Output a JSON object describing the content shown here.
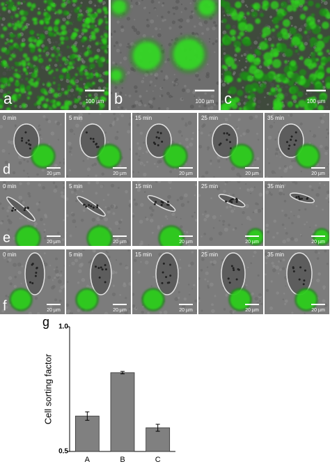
{
  "image_panels": [
    {
      "label": "a",
      "scale_bar": "100 µm"
    },
    {
      "label": "b",
      "scale_bar": "100 µm"
    },
    {
      "label": "c",
      "scale_bar": "100 µm"
    }
  ],
  "time_series_rows": [
    {
      "label": "d",
      "times": [
        "0 min",
        "5 min",
        "15 min",
        "25 min",
        "35 min"
      ],
      "scale_bar": "20 µm"
    },
    {
      "label": "e",
      "times": [
        "0 min",
        "5 min",
        "15 min",
        "25 min",
        "35 min"
      ],
      "scale_bar": "20 µm"
    },
    {
      "label": "f",
      "times": [
        "0 min",
        "5 min",
        "15 min",
        "25 min",
        "35 min"
      ],
      "scale_bar": "20 µm"
    }
  ],
  "chart_data": {
    "type": "bar",
    "panel_label": "g",
    "ylabel": "Cell sorting factor",
    "categories": [
      "A",
      "B",
      "C"
    ],
    "values": [
      0.642,
      0.816,
      0.595
    ],
    "errors": [
      0.017,
      0.005,
      0.014
    ],
    "color": "#808080",
    "ylim": [
      0.5,
      1.0
    ],
    "yticks": [
      0.5,
      {
        "value": 1.0,
        "label": "1.0"
      }
    ]
  }
}
